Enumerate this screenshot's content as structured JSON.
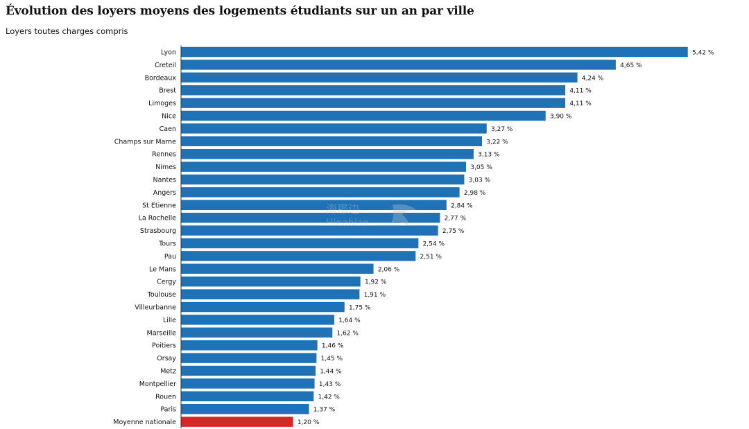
{
  "title": "Évolution des loyers moyens des logements étudiants sur un an par ville",
  "subtitle": "Loyers toutes charges compris",
  "watermark": {
    "text_cn": "海那边",
    "text_latin": "Hinabian"
  },
  "colors": {
    "bar": "#1f72b6",
    "highlight": "#d62728",
    "text": "#111111"
  },
  "chart_data": {
    "type": "bar",
    "orientation": "horizontal",
    "title": "Évolution des loyers moyens des logements étudiants sur un an par ville",
    "subtitle": "Loyers toutes charges compris",
    "unit_suffix": " %",
    "categories": [
      "Lyon",
      "Creteil",
      "Bordeaux",
      "Brest",
      "Limoges",
      "Nice",
      "Caen",
      "Champs sur Marne",
      "Rennes",
      "Nimes",
      "Nantes",
      "Angers",
      "St Etienne",
      "La Rochelle",
      "Strasbourg",
      "Tours",
      "Pau",
      "Le Mans",
      "Cergy",
      "Toulouse",
      "Villeurbanne",
      "Lille",
      "Marseille",
      "Poitiers",
      "Orsay",
      "Metz",
      "Montpellier",
      "Rouen",
      "Paris",
      "Moyenne nationale"
    ],
    "values": [
      5.42,
      4.65,
      4.24,
      4.11,
      4.11,
      3.9,
      3.27,
      3.22,
      3.13,
      3.05,
      3.03,
      2.98,
      2.84,
      2.77,
      2.75,
      2.54,
      2.51,
      2.06,
      1.92,
      1.91,
      1.75,
      1.64,
      1.62,
      1.46,
      1.45,
      1.44,
      1.43,
      1.42,
      1.37,
      1.2
    ],
    "value_labels": [
      "5,42 %",
      "4,65 %",
      "4,24 %",
      "4,11 %",
      "4,11 %",
      "3,90 %",
      "3,27 %",
      "3,22 %",
      "3,13 %",
      "3,05 %",
      "3,03 %",
      "2,98 %",
      "2,84 %",
      "2,77 %",
      "2,75 %",
      "2,54 %",
      "2,51 %",
      "2,06 %",
      "1,92 %",
      "1,91 %",
      "1,75 %",
      "1,64 %",
      "1,62 %",
      "1,46 %",
      "1,45 %",
      "1,44 %",
      "1,43 %",
      "1,42 %",
      "1,37 %",
      "1,20 %"
    ],
    "highlighted_category": "Moyenne nationale",
    "xlim": [
      0,
      5.42
    ],
    "grid": false,
    "legend": "none"
  }
}
